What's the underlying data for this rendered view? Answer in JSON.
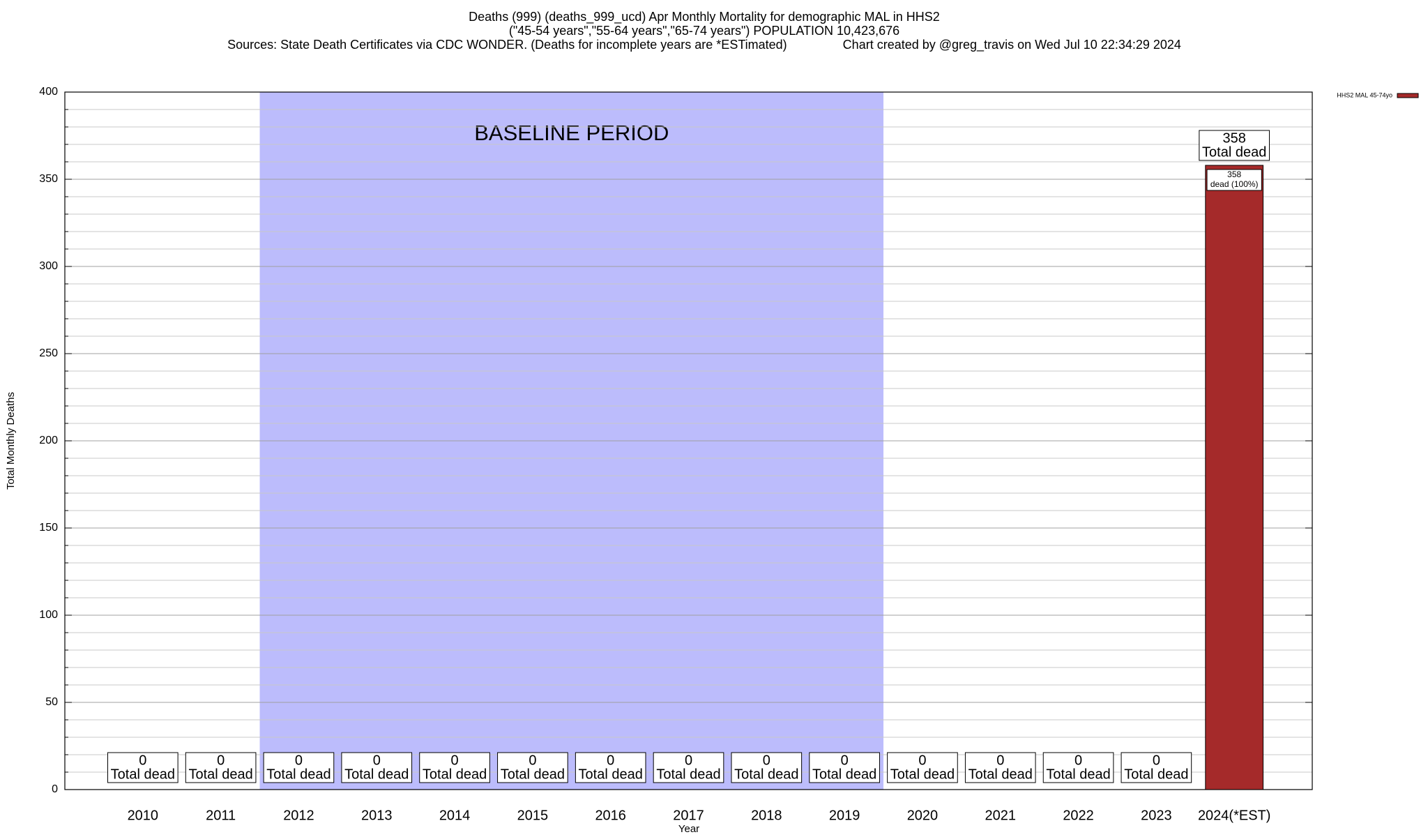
{
  "chart_data": {
    "type": "bar",
    "title": [
      "Deaths (999) (deaths_999_ucd) Apr Monthly Mortality for demographic MAL in HHS2",
      "(\"45-54 years\",\"55-64 years\",\"65-74 years\") POPULATION 10,423,676",
      "Sources: State Death Certificates via CDC WONDER. (Deaths for incomplete years are *ESTimated)                Chart created by @greg_travis on Wed Jul 10 22:34:29 2024"
    ],
    "x_label": "Year",
    "y_label": "Total Monthly Deaths",
    "categories": [
      "2010",
      "2011",
      "2012",
      "2013",
      "2014",
      "2015",
      "2016",
      "2017",
      "2018",
      "2019",
      "2020",
      "2021",
      "2022",
      "2023",
      "2024(*EST)"
    ],
    "series": [
      {
        "name": "HHS2 MAL 45-74yo",
        "color": "#a52a2a",
        "values": [
          0,
          0,
          0,
          0,
          0,
          0,
          0,
          0,
          0,
          0,
          0,
          0,
          0,
          0,
          358
        ],
        "segment_labels": [
          null,
          null,
          null,
          null,
          null,
          null,
          null,
          null,
          null,
          null,
          null,
          null,
          null,
          null,
          "dead (100%)"
        ]
      }
    ],
    "total_label": "Total dead",
    "baseline": {
      "label": "BASELINE PERIOD",
      "start": "2012",
      "end": "2019",
      "color": "#bcbcfc"
    },
    "ylim": [
      0,
      400
    ],
    "yticks": [
      0,
      50,
      100,
      150,
      200,
      250,
      300,
      350,
      400
    ],
    "minor_yticks": [
      10,
      20,
      30,
      40,
      60,
      70,
      80,
      90,
      110,
      120,
      130,
      140,
      160,
      170,
      180,
      190,
      210,
      220,
      230,
      240,
      260,
      270,
      280,
      290,
      310,
      320,
      330,
      340,
      360,
      370,
      380,
      390
    ],
    "grid": true,
    "legend": "top-right"
  }
}
